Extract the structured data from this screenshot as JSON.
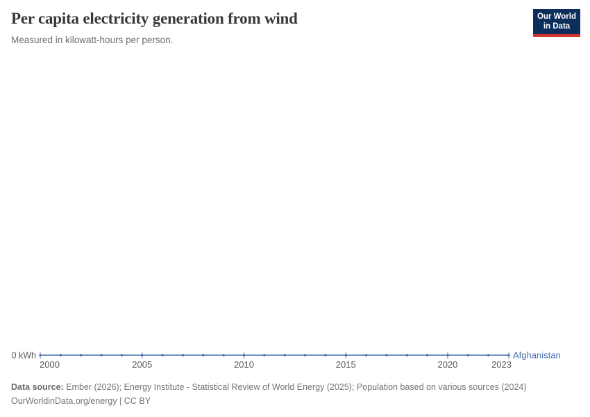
{
  "chart_data": {
    "type": "line",
    "title": "Per capita electricity generation from wind",
    "subtitle": "Measured in kilowatt-hours per person.",
    "x": [
      2000,
      2001,
      2002,
      2003,
      2004,
      2005,
      2006,
      2007,
      2008,
      2009,
      2010,
      2011,
      2012,
      2013,
      2014,
      2015,
      2016,
      2017,
      2018,
      2019,
      2020,
      2021,
      2022,
      2023
    ],
    "series": [
      {
        "name": "Afghanistan",
        "color": "#4d6fb2",
        "values": [
          0,
          0,
          0,
          0,
          0,
          0,
          0,
          0,
          0,
          0,
          0,
          0,
          0,
          0,
          0,
          0,
          0,
          0,
          0,
          0,
          0,
          0,
          0,
          0
        ]
      }
    ],
    "x_ticks": [
      2000,
      2005,
      2010,
      2015,
      2020,
      2023
    ],
    "xlim": [
      2000,
      2023
    ],
    "ylim": [
      0,
      0
    ],
    "y_axis_label": "0 kWh",
    "unit": "kWh",
    "grid": false,
    "legend_position": "end-of-line",
    "axis_label_color": "#575757"
  },
  "logo": {
    "line1": "Our World",
    "line2": "in Data",
    "bg_color": "#0d2e5b",
    "accent_color": "#d0342c"
  },
  "footer": {
    "source_label": "Data source:",
    "sources": "Ember (2026); Energy Institute - Statistical Review of World Energy (2025); Population based on various sources (2024)",
    "citation": "OurWorldinData.org/energy | CC BY"
  }
}
